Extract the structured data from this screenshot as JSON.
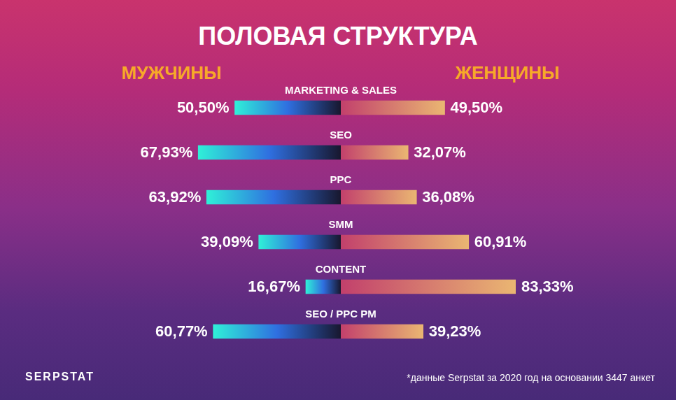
{
  "chart_data": {
    "type": "bar",
    "title": "ПОЛОВАЯ СТРУКТУРА",
    "orientation": "horizontal",
    "categories": [
      "MARKETING & SALES",
      "SEO",
      "PPC",
      "SMM",
      "CONTENT",
      "SEO / PPC PM"
    ],
    "series": [
      {
        "name": "МУЖЧИНЫ",
        "color": "#2ff0d8",
        "values": [
          50.5,
          67.93,
          63.92,
          39.09,
          16.67,
          60.77
        ],
        "value_labels": [
          "50,50%",
          "67,93%",
          "63,92%",
          "39,09%",
          "16,67%",
          "60,77%"
        ]
      },
      {
        "name": "ЖЕНЩИНЫ",
        "color": "#eab672",
        "values": [
          49.5,
          32.07,
          36.08,
          60.91,
          83.33,
          39.23
        ],
        "value_labels": [
          "49,50%",
          "32,07%",
          "36,08%",
          "60,91%",
          "83,33%",
          "39,23%"
        ]
      }
    ],
    "data_labels": true,
    "grid": false,
    "tick_labels": false,
    "note": "*данные Serpstat за 2020 год на основании 3447 анкет",
    "logo": "SERPSTAT"
  }
}
